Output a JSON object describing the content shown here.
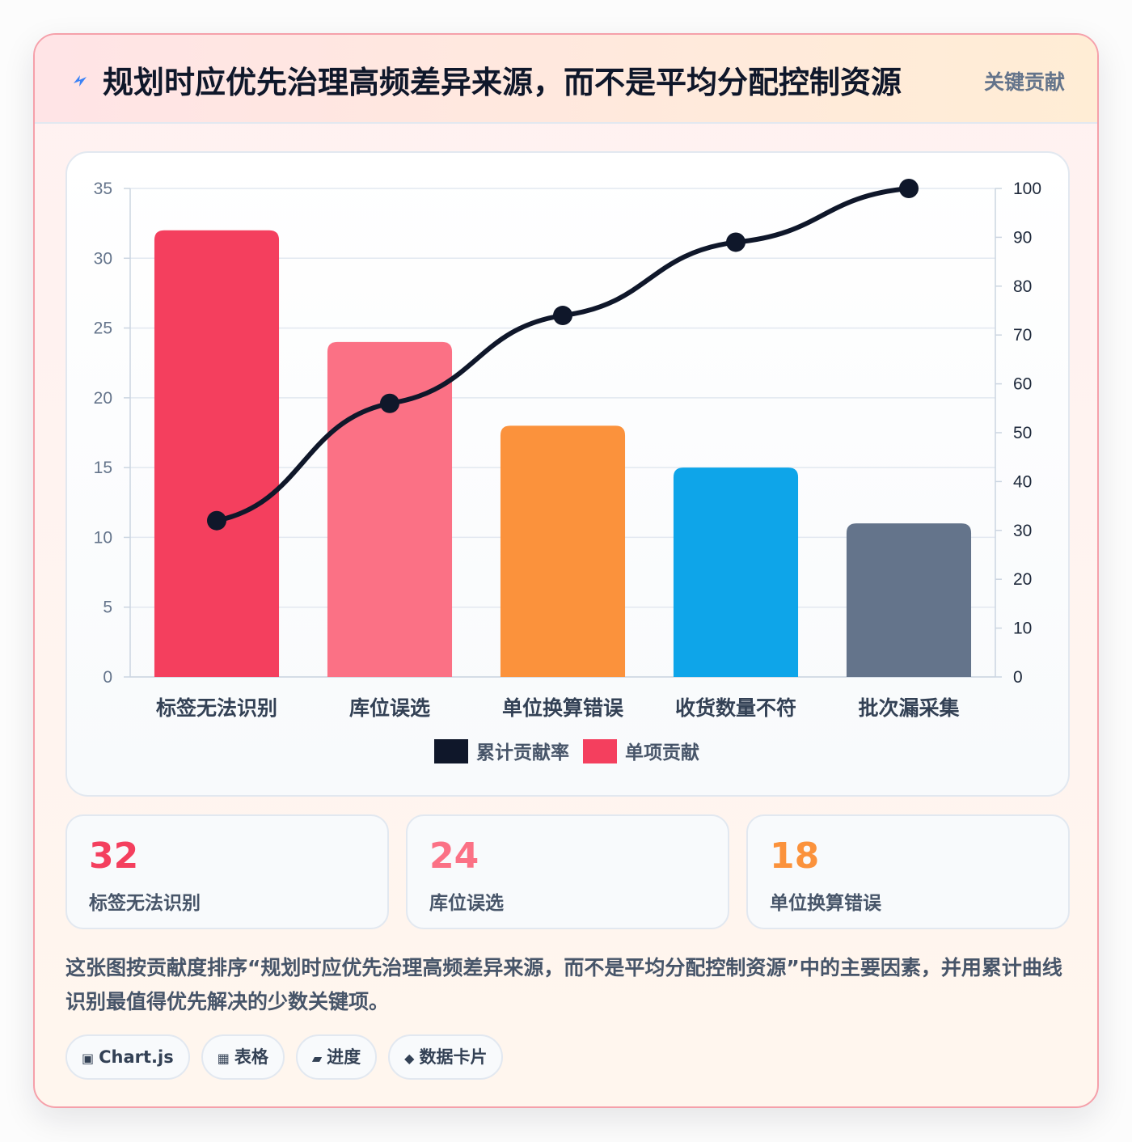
{
  "header": {
    "title": "规划时应优先治理高频差异来源，而不是平均分配控制资源",
    "tag": "关键贡献",
    "icon": "lightning-icon"
  },
  "chart_data": {
    "type": "bar",
    "categories": [
      "标签无法识别",
      "库位误选",
      "单位换算错误",
      "收货数量不符",
      "批次漏采集"
    ],
    "series": [
      {
        "name": "单项贡献",
        "type": "bar",
        "axis": "left",
        "values": [
          32,
          24,
          18,
          15,
          11
        ],
        "colors": [
          "#f43f5e",
          "#fb7185",
          "#fb923c",
          "#0ea5e9",
          "#64748b"
        ]
      },
      {
        "name": "累计贡献率",
        "type": "line",
        "axis": "right",
        "values": [
          32,
          56,
          74,
          89,
          100
        ],
        "color": "#0f172a"
      }
    ],
    "y_left": {
      "min": 0,
      "max": 35,
      "ticks": [
        "0",
        "5",
        "10",
        "15",
        "20",
        "25",
        "30",
        "35"
      ]
    },
    "y_right": {
      "min": 0,
      "max": 100,
      "ticks": [
        "0",
        "10",
        "20",
        "30",
        "40",
        "50",
        "60",
        "70",
        "80",
        "90",
        "100"
      ]
    },
    "legend": {
      "position": "bottom",
      "order": [
        "累计贡献率",
        "单项贡献"
      ]
    },
    "grid": true
  },
  "stats": [
    {
      "value": "32",
      "label": "标签无法识别",
      "color": "#f43f5e"
    },
    {
      "value": "24",
      "label": "库位误选",
      "color": "#fb7185"
    },
    {
      "value": "18",
      "label": "单位换算错误",
      "color": "#fb923c"
    }
  ],
  "description": "这张图按贡献度排序“规划时应优先治理高频差异来源，而不是平均分配控制资源”中的主要因素，并用累计曲线识别最值得优先解决的少数关键项。",
  "chips": [
    {
      "icon": "▣",
      "icon_name": "chart-icon",
      "label": "Chart.js"
    },
    {
      "icon": "▦",
      "icon_name": "table-icon",
      "label": "表格"
    },
    {
      "icon": "▰",
      "icon_name": "progress-icon",
      "label": "进度"
    },
    {
      "icon": "◆",
      "icon_name": "diamond-icon",
      "label": "数据卡片"
    }
  ]
}
